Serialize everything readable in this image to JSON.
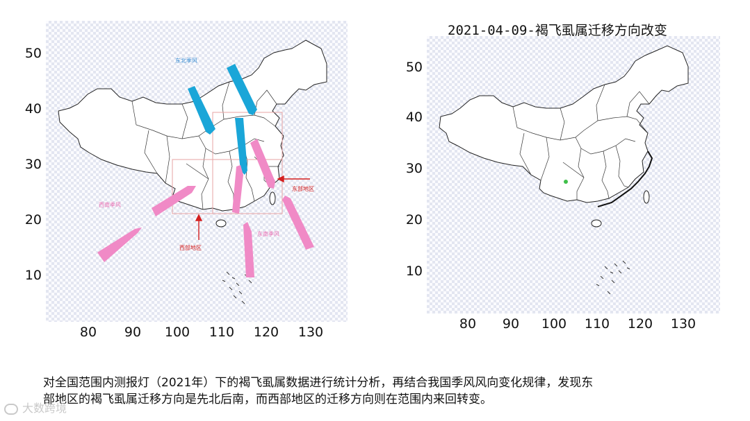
{
  "left_map": {
    "y_ticks": [
      "50",
      "40",
      "30",
      "20",
      "10"
    ],
    "x_ticks": [
      "80",
      "90",
      "100",
      "110",
      "120",
      "130"
    ],
    "labels": {
      "east_region": "东部地区",
      "west_region": "西部地区",
      "southwest_monsoon": "西南季风",
      "northeast_monsoon": "东北季风",
      "southeast_monsoon": "东南季风"
    }
  },
  "right_map": {
    "title": "2021-04-09-褐飞虱属迁移方向改变",
    "y_ticks": [
      "50",
      "40",
      "30",
      "20",
      "10"
    ],
    "x_ticks": [
      "80",
      "90",
      "100",
      "110",
      "120",
      "130"
    ]
  },
  "colors": {
    "arrow_blue": "#1aa6d8",
    "arrow_pink": "#f08ac6",
    "region_box": "#e7a3a3",
    "pointer_red": "#d41f1f",
    "dot_green": "#3fbf4a"
  },
  "caption": {
    "line1": "对全国范围内测报灯（2021年）下的褐飞虱属数据进行统计分析，再结合我国季风风向变化规律，发现东",
    "line2": "部地区的褐飞虱属迁移方向是先北后南，而西部地区的迁移方向则在范围内来回转变。"
  },
  "watermark": "大数跨境"
}
